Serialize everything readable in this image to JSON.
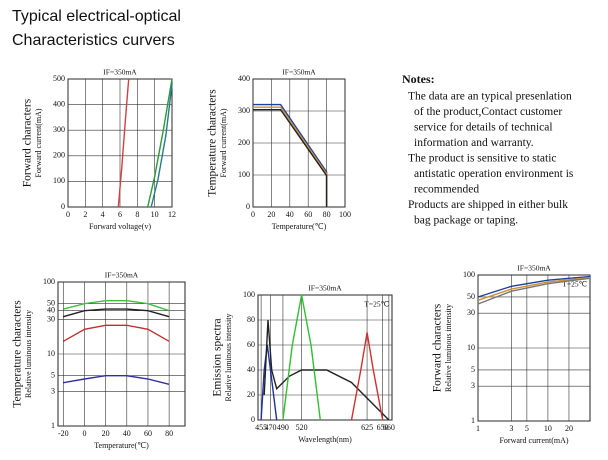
{
  "header": {
    "title": [
      "Typical electrical-optical",
      "Characteristics curvers"
    ]
  },
  "notes": {
    "heading": "Notes:",
    "lines": [
      "The data are an typical presenlation",
      "of the product,Contact customer",
      "service for details of technical",
      "information and warranty.",
      "The product is sensitive to static",
      "antistatic operation environment is",
      "recommended",
      "Products are shipped in either bulk",
      "bag package or taping."
    ]
  },
  "chart_data": [
    {
      "type": "line",
      "title": "IF=350mA",
      "ylabel": [
        "Forward characters",
        "Forward current(mA)"
      ],
      "xlabel": "Forward voltage(v)",
      "xlim": [
        0,
        12
      ],
      "xticks": [
        0,
        2,
        4,
        6,
        8,
        10,
        12
      ],
      "ylim": [
        0,
        500
      ],
      "yticks": [
        0,
        100,
        200,
        300,
        400,
        500
      ],
      "grid": true,
      "series": [
        {
          "color": "#d04040",
          "x": [
            5.8,
            6.2,
            6.6,
            7.0
          ],
          "values": [
            0,
            150,
            330,
            500
          ]
        },
        {
          "color": "#2a9a3a",
          "x": [
            9.2,
            10,
            11,
            12
          ],
          "values": [
            0,
            120,
            300,
            500
          ]
        },
        {
          "color": "#2a7a8a",
          "x": [
            9.6,
            10.4,
            11.3,
            12
          ],
          "values": [
            0,
            110,
            280,
            480
          ]
        }
      ]
    },
    {
      "type": "line",
      "title": "IF=350mA",
      "ylabel": [
        "Temperature characters",
        "Forward current(mA)"
      ],
      "xlabel": "Temperature(℃)",
      "xlim": [
        0,
        100
      ],
      "xticks": [
        0,
        20,
        40,
        60,
        80,
        100
      ],
      "ylim": [
        0,
        400
      ],
      "yticks": [
        0,
        100,
        200,
        300,
        400
      ],
      "grid": true,
      "series": [
        {
          "color": "#2040a0",
          "x": [
            0,
            30,
            80,
            80
          ],
          "values": [
            320,
            320,
            110,
            0
          ]
        },
        {
          "color": "#d09030",
          "x": [
            0,
            30,
            80,
            80
          ],
          "values": [
            312,
            312,
            104,
            0
          ]
        },
        {
          "color": "#222222",
          "x": [
            0,
            30,
            80,
            80
          ],
          "values": [
            304,
            304,
            98,
            0
          ]
        }
      ]
    },
    {
      "type": "line",
      "title": "IF=350mA",
      "ylabel": [
        "Temperature characters",
        "Relative luminous intensity"
      ],
      "xlabel": "Temperature(℃)",
      "xlim": [
        -25,
        95
      ],
      "xticks": [
        -20,
        0,
        20,
        40,
        60,
        80
      ],
      "ylim": [
        1,
        100
      ],
      "yscale": "log",
      "yticks": [
        1,
        3,
        5,
        10,
        30,
        40,
        50,
        100
      ],
      "grid": true,
      "series": [
        {
          "color": "#40c040",
          "x": [
            -20,
            0,
            20,
            40,
            60,
            80
          ],
          "values": [
            42,
            50,
            55,
            55,
            50,
            40
          ]
        },
        {
          "color": "#222222",
          "x": [
            -20,
            0,
            20,
            40,
            60,
            80
          ],
          "values": [
            33,
            40,
            42,
            42,
            40,
            33
          ]
        },
        {
          "color": "#c03030",
          "x": [
            -20,
            0,
            20,
            40,
            60,
            80
          ],
          "values": [
            15,
            22,
            25,
            25,
            22,
            15
          ]
        },
        {
          "color": "#3030a0",
          "x": [
            -20,
            0,
            20,
            40,
            60,
            80
          ],
          "values": [
            4,
            4.5,
            5,
            5,
            4.5,
            3.8
          ]
        }
      ]
    },
    {
      "type": "line",
      "title": "IF=350mA",
      "annotation": "T=25℃",
      "ylabel": [
        "Emission spectra",
        "Relative luminous intensity"
      ],
      "xlabel": "Wavelength(nm)",
      "xlim": [
        450,
        665
      ],
      "xticks": [
        455,
        470,
        490,
        520,
        625,
        650,
        660
      ],
      "ylim": [
        0,
        100
      ],
      "yticks": [
        0,
        20,
        40,
        60,
        80,
        100
      ],
      "grid": true,
      "series": [
        {
          "color": "#2030a0",
          "x": [
            455,
            460,
            465,
            470,
            480
          ],
          "values": [
            0,
            40,
            60,
            40,
            0
          ]
        },
        {
          "color": "#222222",
          "x": [
            460,
            466,
            472,
            480,
            500,
            520,
            560,
            600,
            640,
            660
          ],
          "values": [
            20,
            80,
            40,
            25,
            35,
            40,
            40,
            30,
            10,
            0
          ]
        },
        {
          "color": "#30c030",
          "x": [
            490,
            505,
            520,
            535,
            550
          ],
          "values": [
            0,
            60,
            100,
            60,
            0
          ]
        },
        {
          "color": "#d03030",
          "x": [
            600,
            615,
            625,
            635,
            650
          ],
          "values": [
            0,
            40,
            70,
            40,
            0
          ]
        }
      ]
    },
    {
      "type": "line",
      "title": "IF=350mA",
      "annotation": "T=25℃",
      "ylabel": [
        "Forward characters",
        "Relative luminous intensity"
      ],
      "xlabel": "Forward current(mA)",
      "xlim": [
        1,
        40
      ],
      "xscale": "log",
      "xticks": [
        1,
        3,
        5,
        10,
        20
      ],
      "ylim": [
        1,
        100
      ],
      "yscale": "log",
      "yticks": [
        1,
        3,
        5,
        10,
        30,
        50,
        100
      ],
      "grid": true,
      "series": [
        {
          "color": "#2040a0",
          "x": [
            1,
            3,
            10,
            20,
            40
          ],
          "values": [
            50,
            70,
            85,
            90,
            95
          ]
        },
        {
          "color": "#d09030",
          "x": [
            1,
            3,
            10,
            20,
            40
          ],
          "values": [
            45,
            64,
            80,
            86,
            92
          ]
        },
        {
          "color": "#777777",
          "x": [
            1,
            3,
            10,
            20,
            40
          ],
          "values": [
            40,
            60,
            76,
            83,
            90
          ]
        }
      ]
    }
  ]
}
